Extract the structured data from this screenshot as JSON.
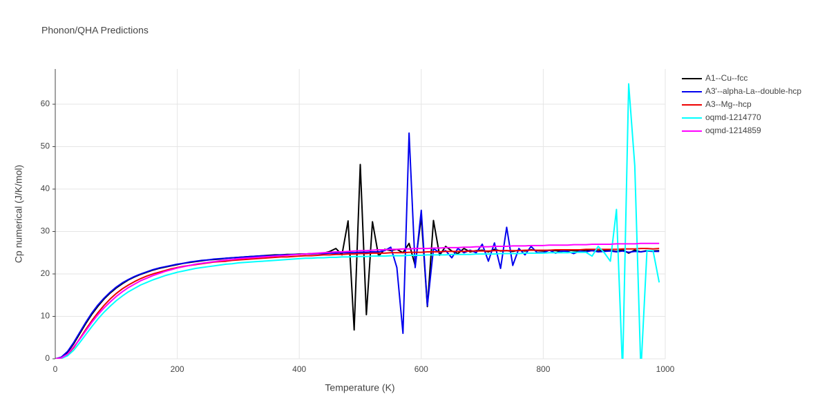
{
  "chart_data": {
    "type": "line",
    "title": "Phonon/QHA Predictions",
    "x_label": "Temperature (K)",
    "y_label": "Cp numerical (J/K/mol)",
    "xlim": [
      0,
      1000
    ],
    "ylim": [
      0,
      68.3
    ],
    "xticks": [
      0,
      200,
      400,
      600,
      800,
      1000
    ],
    "yticks": [
      0,
      10,
      20,
      30,
      40,
      50,
      60
    ],
    "grid": true,
    "legend": "right",
    "x": [
      0,
      10,
      20,
      30,
      40,
      50,
      60,
      70,
      80,
      90,
      100,
      110,
      120,
      130,
      140,
      150,
      160,
      170,
      180,
      190,
      200,
      210,
      220,
      230,
      240,
      250,
      260,
      270,
      280,
      290,
      300,
      310,
      320,
      330,
      340,
      350,
      360,
      370,
      380,
      390,
      400,
      410,
      420,
      430,
      440,
      450,
      460,
      470,
      480,
      490,
      500,
      510,
      520,
      530,
      540,
      550,
      560,
      570,
      580,
      590,
      600,
      610,
      620,
      630,
      640,
      650,
      660,
      670,
      680,
      690,
      700,
      710,
      720,
      730,
      740,
      750,
      760,
      770,
      780,
      790,
      800,
      810,
      820,
      830,
      840,
      850,
      860,
      870,
      880,
      890,
      900,
      910,
      920,
      930,
      940,
      950,
      960,
      970,
      980,
      990
    ],
    "series": [
      {
        "name": "A1--Cu--fcc",
        "color": "#000000",
        "values": [
          0,
          0.3,
          1.5,
          3.5,
          5.9,
          8.3,
          10.5,
          12.4,
          14.1,
          15.5,
          16.7,
          17.7,
          18.6,
          19.3,
          19.9,
          20.4,
          20.9,
          21.3,
          21.6,
          21.9,
          22.2,
          22.5,
          22.7,
          22.9,
          23.1,
          23.3,
          23.4,
          23.5,
          23.7,
          23.8,
          23.9,
          24.0,
          24.1,
          24.2,
          24.3,
          24.4,
          24.5,
          24.5,
          24.6,
          24.6,
          24.7,
          24.7,
          24.8,
          24.8,
          24.9,
          25.3,
          26.0,
          24.5,
          32.5,
          6.8,
          45.8,
          10.4,
          32.3,
          24.2,
          25.8,
          25.5,
          25.8,
          25.0,
          27.2,
          22.0,
          33.5,
          12.3,
          32.6,
          24.4,
          26.5,
          25.4,
          24.8,
          26.0,
          25.2,
          25.5,
          25.6,
          25.2,
          25.8,
          25.4,
          25.5,
          25.3,
          25.6,
          25.4,
          25.7,
          25.5,
          25.4,
          25.6,
          25.5,
          25.3,
          25.6,
          25.5,
          25.4,
          25.6,
          25.5,
          25.4,
          25.6,
          25.5,
          25.3,
          25.7,
          24.9,
          25.6,
          25.2,
          25.5,
          25.4,
          25.5
        ]
      },
      {
        "name": "A3'--alpha-La--double-hcp",
        "color": "#0000ee",
        "values": [
          0,
          0.4,
          1.7,
          3.8,
          6.2,
          8.6,
          10.8,
          12.7,
          14.3,
          15.7,
          16.9,
          17.9,
          18.7,
          19.4,
          20.0,
          20.5,
          21.0,
          21.4,
          21.7,
          22.0,
          22.3,
          22.5,
          22.8,
          23.0,
          23.2,
          23.3,
          23.5,
          23.6,
          23.7,
          23.8,
          23.9,
          24.0,
          24.1,
          24.2,
          24.3,
          24.3,
          24.4,
          24.5,
          24.5,
          24.6,
          24.6,
          24.7,
          24.7,
          24.8,
          24.8,
          24.9,
          24.9,
          25.0,
          25.0,
          25.0,
          25.1,
          25.1,
          25.2,
          25.2,
          25.5,
          26.3,
          21.5,
          6.0,
          53.2,
          21.5,
          35.0,
          12.5,
          26.0,
          25.0,
          25.5,
          23.8,
          26.0,
          25.0,
          25.6,
          25.0,
          27.0,
          23.0,
          27.3,
          21.3,
          31.0,
          22.0,
          26.0,
          24.5,
          26.5,
          25.0,
          25.0,
          25.6,
          24.9,
          25.4,
          25.3,
          24.8,
          25.4,
          25.2,
          25.5,
          25.2,
          25.3,
          25.4,
          25.2,
          25.4,
          25.1,
          25.3,
          25.2,
          25.4,
          25.3,
          25.3
        ]
      },
      {
        "name": "A3--Mg--hcp",
        "color": "#ee0000",
        "values": [
          0,
          0.2,
          1.0,
          2.6,
          4.7,
          6.9,
          9.0,
          10.9,
          12.6,
          14.1,
          15.4,
          16.5,
          17.4,
          18.2,
          18.9,
          19.5,
          20.0,
          20.4,
          20.8,
          21.2,
          21.5,
          21.8,
          22.0,
          22.2,
          22.4,
          22.6,
          22.8,
          22.9,
          23.0,
          23.2,
          23.3,
          23.4,
          23.5,
          23.6,
          23.7,
          23.8,
          23.9,
          24.0,
          24.0,
          24.1,
          24.2,
          24.3,
          24.3,
          24.4,
          24.5,
          24.5,
          24.6,
          24.6,
          24.7,
          24.7,
          24.8,
          24.8,
          24.9,
          24.9,
          24.9,
          25.0,
          25.0,
          25.0,
          25.1,
          25.1,
          25.1,
          25.2,
          25.2,
          25.2,
          25.3,
          25.3,
          25.3,
          25.3,
          25.4,
          25.4,
          25.4,
          25.4,
          25.5,
          25.5,
          25.5,
          25.5,
          25.5,
          25.6,
          25.6,
          25.6,
          25.6,
          25.6,
          25.7,
          25.7,
          25.7,
          25.7,
          25.7,
          25.8,
          25.8,
          25.8,
          25.8,
          25.8,
          25.8,
          25.9,
          25.9,
          25.9,
          26.0,
          26.0,
          25.9,
          26.0
        ]
      },
      {
        "name": "oqmd-1214770",
        "color": "#00ffff",
        "values": [
          0,
          0.1,
          0.7,
          2.0,
          3.8,
          5.7,
          7.6,
          9.4,
          11.0,
          12.4,
          13.7,
          14.8,
          15.8,
          16.6,
          17.4,
          18.0,
          18.6,
          19.1,
          19.6,
          20.0,
          20.4,
          20.7,
          21.0,
          21.3,
          21.5,
          21.7,
          21.9,
          22.1,
          22.3,
          22.4,
          22.6,
          22.7,
          22.8,
          22.9,
          23.0,
          23.1,
          23.2,
          23.3,
          23.4,
          23.5,
          23.6,
          23.7,
          23.7,
          23.8,
          23.8,
          23.9,
          23.9,
          24.0,
          24.0,
          24.1,
          24.1,
          24.1,
          24.2,
          24.2,
          24.2,
          24.3,
          24.3,
          24.3,
          24.4,
          24.4,
          24.4,
          24.5,
          24.5,
          24.5,
          24.5,
          24.6,
          24.6,
          24.6,
          24.6,
          24.7,
          24.7,
          24.7,
          24.7,
          24.8,
          24.8,
          24.8,
          24.8,
          24.9,
          24.9,
          24.9,
          24.9,
          25.0,
          25.0,
          25.0,
          25.0,
          25.1,
          25.1,
          25.1,
          24.2,
          26.5,
          25.0,
          23.0,
          35.2,
          -3,
          64.8,
          45.5,
          -3,
          25.5,
          25.5,
          18.0
        ]
      },
      {
        "name": "oqmd-1214859",
        "color": "#ff00ff",
        "values": [
          0,
          0.2,
          1.1,
          2.8,
          4.6,
          6.6,
          8.6,
          10.4,
          12.0,
          13.4,
          14.7,
          15.8,
          16.8,
          17.6,
          18.4,
          19.0,
          19.6,
          20.1,
          20.6,
          21.0,
          21.4,
          21.7,
          22.0,
          22.3,
          22.5,
          22.7,
          22.9,
          23.1,
          23.3,
          23.4,
          23.6,
          23.7,
          23.8,
          23.9,
          24.0,
          24.1,
          24.2,
          24.3,
          24.4,
          24.5,
          24.6,
          24.7,
          24.8,
          24.9,
          25.0,
          25.1,
          25.2,
          25.2,
          25.3,
          25.4,
          25.5,
          25.5,
          25.6,
          25.7,
          25.7,
          25.8,
          25.8,
          25.9,
          25.9,
          26.0,
          26.0,
          26.0,
          26.1,
          26.1,
          26.2,
          26.2,
          26.2,
          26.3,
          26.3,
          26.4,
          26.4,
          26.4,
          26.5,
          26.5,
          26.5,
          26.6,
          26.6,
          26.6,
          26.7,
          26.7,
          26.7,
          26.8,
          26.8,
          26.8,
          26.8,
          26.9,
          26.9,
          26.9,
          27.0,
          27.0,
          27.0,
          27.0,
          27.1,
          27.1,
          27.1,
          27.1,
          27.2,
          27.2,
          27.2,
          27.2
        ]
      }
    ]
  }
}
